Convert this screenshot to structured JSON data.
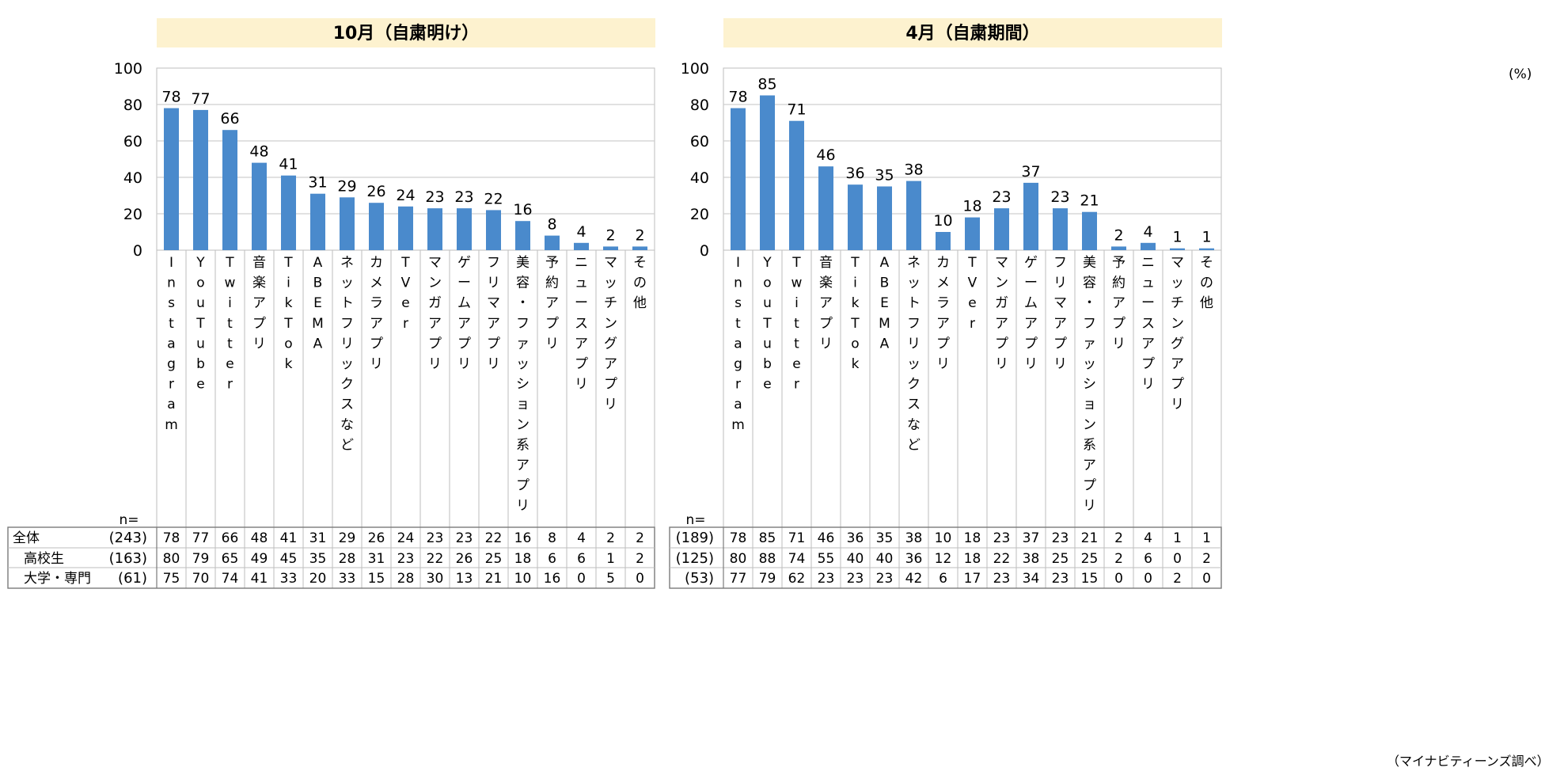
{
  "unit_label": "(%)",
  "source_label": "（マイナビティーンズ調べ）",
  "n_label": "n=",
  "chart_data": [
    {
      "type": "bar",
      "title": "10月（自粛明け）",
      "ylim": [
        0,
        100
      ],
      "yticks": [
        0,
        20,
        40,
        60,
        80,
        100
      ],
      "grid": true,
      "categories": [
        "Instagram",
        "YouTube",
        "Twitter",
        "音楽アプリ",
        "TikTok",
        "ABEMA",
        "ネットフリックスなど",
        "カメラアプリ",
        "TVer",
        "マンガアプリ",
        "ゲームアプリ",
        "フリマアプリ",
        "美容・ファッション系アプリ",
        "予約アプリ",
        "ニュースアプリ",
        "マッチングアプリ",
        "その他"
      ],
      "values": [
        78,
        77,
        66,
        48,
        41,
        31,
        29,
        26,
        24,
        23,
        23,
        22,
        16,
        8,
        4,
        2,
        2
      ],
      "table": {
        "rows": [
          {
            "label": "全体",
            "n": "(243)",
            "values": [
              78,
              77,
              66,
              48,
              41,
              31,
              29,
              26,
              24,
              23,
              23,
              22,
              16,
              8,
              4,
              2,
              2
            ]
          },
          {
            "label": "高校生",
            "n": "(163)",
            "values": [
              80,
              79,
              65,
              49,
              45,
              35,
              28,
              31,
              23,
              22,
              26,
              25,
              18,
              6,
              6,
              1,
              2
            ]
          },
          {
            "label": "大学・専門",
            "n": "(61)",
            "values": [
              75,
              70,
              74,
              41,
              33,
              20,
              33,
              15,
              28,
              30,
              13,
              21,
              10,
              16,
              0,
              5,
              0
            ]
          }
        ]
      }
    },
    {
      "type": "bar",
      "title": "4月（自粛期間）",
      "ylim": [
        0,
        100
      ],
      "yticks": [
        0,
        20,
        40,
        60,
        80,
        100
      ],
      "grid": true,
      "categories": [
        "Instagram",
        "YouTube",
        "Twitter",
        "音楽アプリ",
        "TikTok",
        "ABEMA",
        "ネットフリックスなど",
        "カメラアプリ",
        "TVer",
        "マンガアプリ",
        "ゲームアプリ",
        "フリマアプリ",
        "美容・ファッション系アプリ",
        "予約アプリ",
        "ニュースアプリ",
        "マッチングアプリ",
        "その他"
      ],
      "values": [
        78,
        85,
        71,
        46,
        36,
        35,
        38,
        10,
        18,
        23,
        37,
        23,
        21,
        2,
        4,
        1,
        1
      ],
      "table": {
        "rows": [
          {
            "label": "",
            "n": "(189)",
            "values": [
              78,
              85,
              71,
              46,
              36,
              35,
              38,
              10,
              18,
              23,
              37,
              23,
              21,
              2,
              4,
              1,
              1
            ]
          },
          {
            "label": "",
            "n": "(125)",
            "values": [
              80,
              88,
              74,
              55,
              40,
              40,
              36,
              12,
              18,
              22,
              38,
              25,
              25,
              2,
              6,
              0,
              2
            ]
          },
          {
            "label": "",
            "n": "(53)",
            "values": [
              77,
              79,
              62,
              23,
              23,
              23,
              42,
              6,
              17,
              23,
              34,
              23,
              15,
              0,
              0,
              2,
              0
            ]
          }
        ]
      }
    }
  ],
  "colors": {
    "bar": "#4a8acc",
    "title_bg": "#fdf2cf",
    "grid": "#cfcfcf",
    "border": "#bdbdbd",
    "table_border": "#7a7a7a"
  }
}
